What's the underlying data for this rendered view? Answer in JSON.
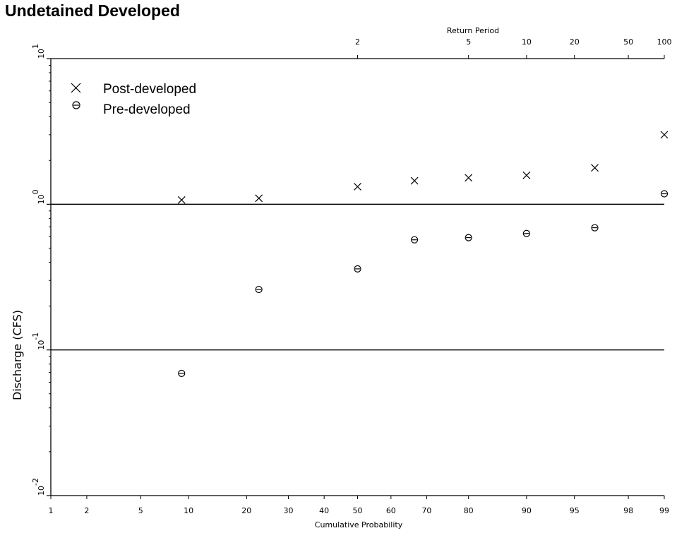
{
  "chart_data": {
    "type": "scatter",
    "title": "Undetained Developed",
    "xlabel": "Cumulative Probability",
    "ylabel": "Discharge (CFS)",
    "secondary_xlabel": "Return Period",
    "x_scale": "normal-probability",
    "y_scale": "log",
    "ylim": [
      0.01,
      10
    ],
    "xlim": [
      1,
      99
    ],
    "x_ticks": [
      1,
      2,
      5,
      10,
      20,
      30,
      40,
      50,
      60,
      70,
      80,
      90,
      95,
      98,
      99
    ],
    "x_tick_labels": [
      "1",
      "2",
      "5",
      "10",
      "20",
      "30",
      "40",
      "50",
      "60",
      "70",
      "80",
      "90",
      "95",
      "98",
      "99"
    ],
    "return_period_ticks": [
      2,
      5,
      10,
      20,
      50,
      100
    ],
    "return_period_labels": [
      "2",
      "5",
      "10",
      "20",
      "50",
      "100"
    ],
    "y_ticks": [
      10,
      1,
      0.1,
      0.01
    ],
    "y_tick_bases": [
      "10",
      "10",
      "10",
      "10"
    ],
    "y_tick_exponents": [
      "1",
      "0",
      "-1",
      "-2"
    ],
    "grid": "horizontal at decades",
    "legend_position": "top-left",
    "series": [
      {
        "name": "Post-developed",
        "marker": "x",
        "points": [
          {
            "x": 9.1,
            "y": 1.07
          },
          {
            "x": 22.7,
            "y": 1.1
          },
          {
            "x": 50.0,
            "y": 1.32
          },
          {
            "x": 66.7,
            "y": 1.45
          },
          {
            "x": 80.0,
            "y": 1.52
          },
          {
            "x": 90.0,
            "y": 1.58
          },
          {
            "x": 96.4,
            "y": 1.78
          },
          {
            "x": 99.0,
            "y": 3.0
          }
        ]
      },
      {
        "name": "Pre-developed",
        "marker": "circle-bar",
        "points": [
          {
            "x": 9.1,
            "y": 0.069
          },
          {
            "x": 22.7,
            "y": 0.26
          },
          {
            "x": 50.0,
            "y": 0.36
          },
          {
            "x": 66.7,
            "y": 0.57
          },
          {
            "x": 80.0,
            "y": 0.59
          },
          {
            "x": 90.0,
            "y": 0.63
          },
          {
            "x": 96.4,
            "y": 0.69
          },
          {
            "x": 99.0,
            "y": 1.18
          }
        ]
      }
    ]
  }
}
